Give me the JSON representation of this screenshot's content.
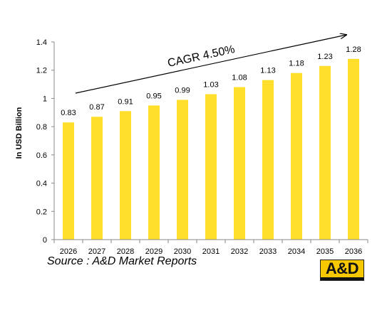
{
  "chart_data": {
    "type": "bar",
    "categories": [
      "2026",
      "2027",
      "2028",
      "2029",
      "2030",
      "2031",
      "2032",
      "2033",
      "2034",
      "2035",
      "2036"
    ],
    "values": [
      0.83,
      0.87,
      0.91,
      0.95,
      0.99,
      1.03,
      1.08,
      1.13,
      1.18,
      1.23,
      1.28
    ],
    "value_labels": [
      "0.83",
      "0.87",
      "0.91",
      "0.95",
      "0.99",
      "1.03",
      "1.08",
      "1.13",
      "1.18",
      "1.23",
      "1.28"
    ],
    "ylabel": "In USD Billion",
    "xlabel": "",
    "ylim": [
      0,
      1.4
    ],
    "y_ticks": [
      "0",
      "0.2",
      "0.4",
      "0.6",
      "0.8",
      "1",
      "1.2",
      "1.4"
    ],
    "y_tick_values": [
      0,
      0.2,
      0.4,
      0.6,
      0.8,
      1.0,
      1.2,
      1.4
    ],
    "grid": false,
    "bar_color": "#ffdf2b",
    "annotation": "CAGR 4.50%"
  },
  "source_text": "Source : A&D Market Reports",
  "logo": {
    "text": "A&D",
    "color": "#f7c800"
  }
}
